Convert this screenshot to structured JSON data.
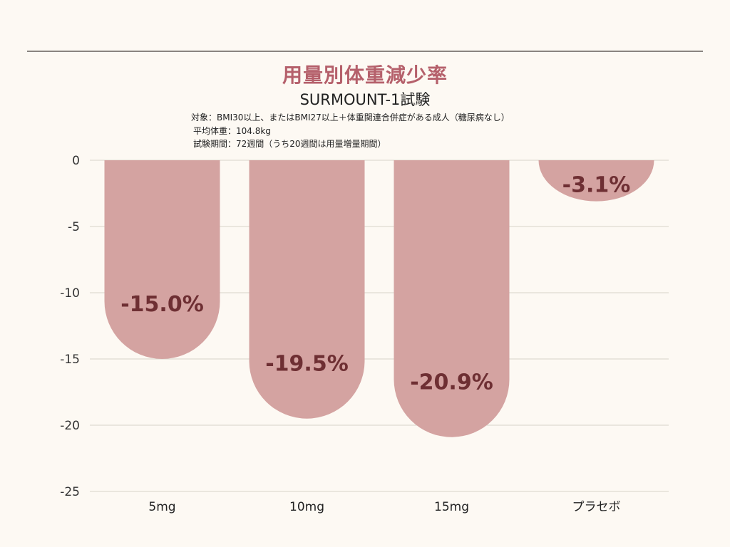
{
  "header": {
    "title": "用量別体重減少率",
    "subtitle": "SURMOUNT-1試験",
    "notes": [
      "対象：BMI30以上、またはBMI27以上＋体重関連合併症がある成人（糖尿病なし）",
      "平均体重：104.8kg",
      "試験期間：72週間（うち20週間は用量増量期間）"
    ]
  },
  "colors": {
    "bar": "#d4a3a1",
    "label": "#6e2f33",
    "title": "#b5606b",
    "grid": "#d8d2ca"
  },
  "chart_data": {
    "type": "bar",
    "categories": [
      "5mg",
      "10mg",
      "15mg",
      "プラセボ"
    ],
    "values": [
      -15.0,
      -19.5,
      -20.9,
      -3.1
    ],
    "data_labels": [
      "-15.0%",
      "-19.5%",
      "-20.9%",
      "-3.1%"
    ],
    "title": "用量別体重減少率",
    "subtitle": "SURMOUNT-1試験",
    "xlabel": "",
    "ylabel": "",
    "ylim": [
      -25,
      0
    ],
    "yticks": [
      0,
      -5,
      -10,
      -15,
      -20,
      -25
    ],
    "ytick_labels": [
      "0",
      "-5",
      "-10",
      "-15",
      "-20",
      "-25"
    ],
    "grid": true
  }
}
